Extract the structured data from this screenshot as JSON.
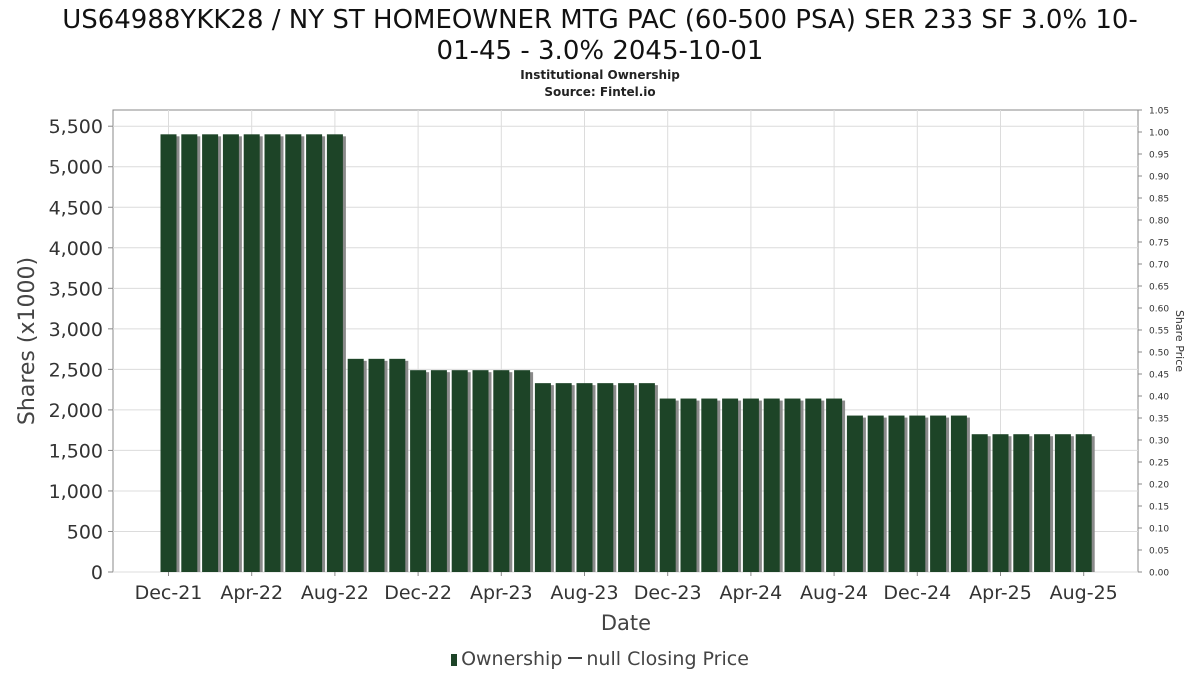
{
  "title_line1": "US64988YKK28 / NY ST HOMEOWNER MTG PAC (60-500 PSA) SER 233 SF 3.0% 10-",
  "title_line2": "01-45 - 3.0% 2045-10-01",
  "subtitle1": "Institutional Ownership",
  "subtitle2": "Source: Fintel.io",
  "legend": {
    "ownership": "Ownership",
    "closing_price": "null Closing Price"
  },
  "colors": {
    "bar": "#1d4427",
    "bar_shadow": "#8a8a8a",
    "grid": "#dcdcdc",
    "axis": "#888888"
  },
  "chart_data": {
    "type": "bar",
    "title": "US64988YKK28 / NY ST HOMEOWNER MTG PAC (60-500 PSA) SER 233 SF 3.0% 10-01-45 - 3.0% 2045-10-01",
    "subtitle": "Institutional Ownership",
    "xlabel": "Date",
    "ylabel": "Shares (x1000)",
    "y2label": "Share Price",
    "ylim": [
      0,
      5700
    ],
    "y2lim": [
      0,
      1.05
    ],
    "yticks": [
      "0",
      "500",
      "1,000",
      "1,500",
      "2,000",
      "2,500",
      "3,000",
      "3,500",
      "4,000",
      "4,500",
      "5,000",
      "5,500"
    ],
    "y2ticks": [
      "0.00",
      "0.05",
      "0.10",
      "0.15",
      "0.20",
      "0.25",
      "0.30",
      "0.35",
      "0.40",
      "0.45",
      "0.50",
      "0.55",
      "0.60",
      "0.65",
      "0.70",
      "0.75",
      "0.80",
      "0.85",
      "0.90",
      "0.95",
      "1.00",
      "1.05"
    ],
    "xticks": [
      "Dec-21",
      "Apr-22",
      "Aug-22",
      "Dec-22",
      "Apr-23",
      "Aug-23",
      "Dec-23",
      "Apr-24",
      "Aug-24",
      "Dec-24",
      "Apr-25",
      "Aug-25"
    ],
    "grid": true,
    "legend_position": "bottom",
    "series": [
      {
        "name": "Ownership",
        "values": [
          5400,
          5400,
          5400,
          5400,
          5400,
          5400,
          5400,
          5400,
          5400,
          2630,
          2630,
          2630,
          2490,
          2490,
          2490,
          2490,
          2490,
          2490,
          2330,
          2330,
          2330,
          2330,
          2330,
          2330,
          2140,
          2140,
          2140,
          2140,
          2140,
          2140,
          2140,
          2140,
          2140,
          1930,
          1930,
          1930,
          1930,
          1930,
          1930,
          1700,
          1700,
          1700,
          1700,
          1700,
          1700
        ]
      }
    ]
  }
}
